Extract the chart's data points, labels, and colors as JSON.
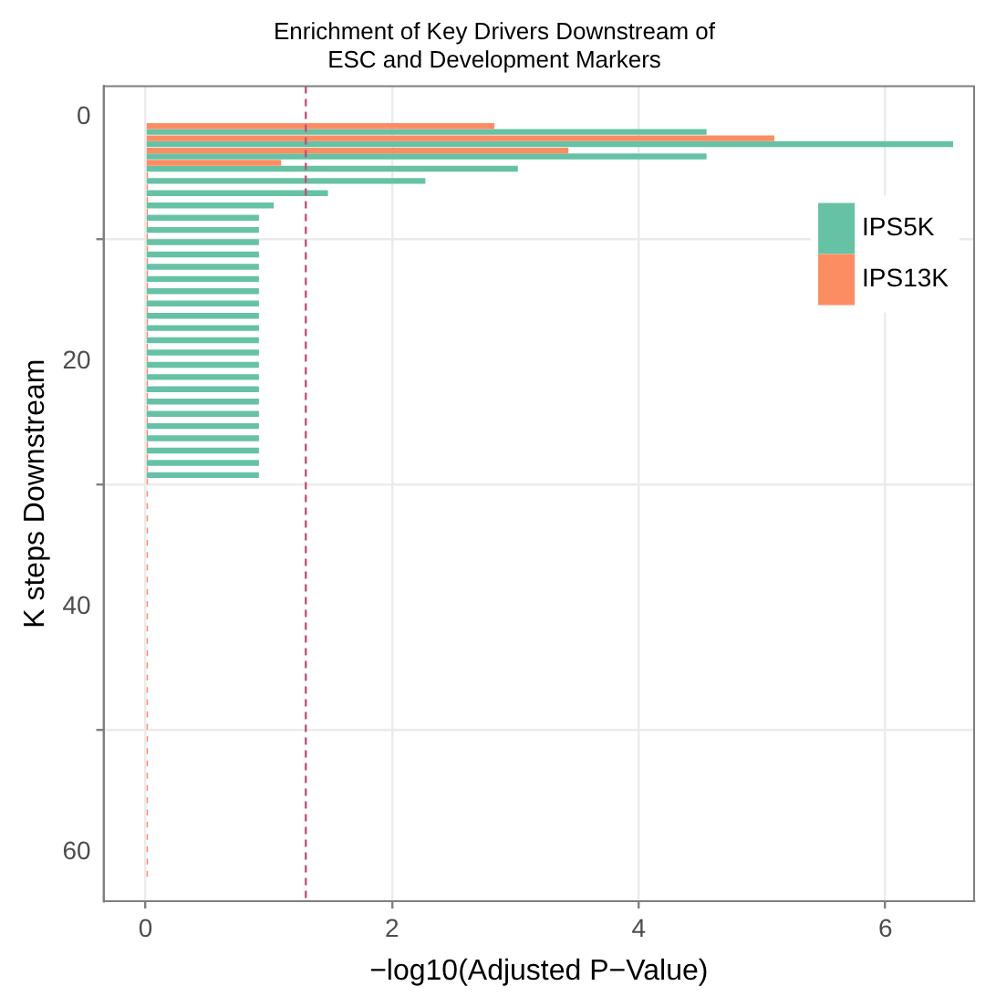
{
  "chart_data": {
    "type": "bar",
    "orientation": "horizontal",
    "title": "Enrichment of Key Drivers Downstream of\nESC and Development Markers",
    "xlabel": "−log10(Adjusted P−Value)",
    "ylabel": "K steps Downstream",
    "x": [
      1,
      2,
      3,
      4,
      5,
      6,
      7,
      8,
      9,
      10,
      11,
      12,
      13,
      14,
      15,
      16,
      17,
      18,
      19,
      20,
      21,
      22,
      23,
      24,
      25,
      26,
      27,
      28,
      29,
      30,
      31,
      32,
      33,
      34,
      35,
      36,
      37,
      38,
      39,
      40,
      41,
      42,
      43,
      44,
      45,
      46,
      47,
      48,
      49,
      50,
      51,
      52,
      53,
      54,
      55,
      56,
      57,
      58,
      59,
      60,
      61,
      62
    ],
    "series": [
      {
        "name": "IPS5K",
        "color": "#66c2a5",
        "values": [
          4.55,
          6.55,
          4.55,
          3.02,
          2.27,
          1.48,
          1.04,
          0.92,
          0.92,
          0.92,
          0.92,
          0.92,
          0.92,
          0.92,
          0.92,
          0.92,
          0.92,
          0.92,
          0.92,
          0.92,
          0.92,
          0.92,
          0.92,
          0.92,
          0.92,
          0.92,
          0.92,
          0.92,
          0.92,
          null,
          null,
          null,
          null,
          null,
          null,
          null,
          null,
          null,
          null,
          null,
          null,
          null,
          null,
          null,
          null,
          null,
          null,
          null,
          null,
          null,
          null,
          null,
          null,
          null,
          null,
          null,
          null,
          null,
          null,
          null,
          null,
          null
        ]
      },
      {
        "name": "IPS13K",
        "color": "#fc8d62",
        "values": [
          2.83,
          5.1,
          3.43,
          1.1,
          0.02,
          0.02,
          0.02,
          0.02,
          0.02,
          0.02,
          0.02,
          0.02,
          0.02,
          0.02,
          0.02,
          0.02,
          0.02,
          0.02,
          0.02,
          0.02,
          0.02,
          0.02,
          0.02,
          0.02,
          0.02,
          0.02,
          0.02,
          0.02,
          0.02,
          0.02,
          0.02,
          0.02,
          0.02,
          0.02,
          0.02,
          0.02,
          0.02,
          0.02,
          0.02,
          0.02,
          0.02,
          0.02,
          0.02,
          0.02,
          0.02,
          0.02,
          0.02,
          0.02,
          0.02,
          0.02,
          0.02,
          0.02,
          0.02,
          0.02,
          0.02,
          0.02,
          0.02,
          0.02,
          0.02,
          0.02,
          0.02,
          0.02
        ]
      }
    ],
    "xlim": [
      -0.34,
      6.72
    ],
    "xticks": [
      0,
      2,
      4,
      6
    ],
    "ylim": [
      64,
      -2.5
    ],
    "yticks": [
      0,
      20,
      40,
      60
    ],
    "ref_lines": [
      {
        "axis": "x",
        "value": 1.3,
        "color": "#c2527a",
        "line_style": "dashed"
      }
    ],
    "grid": true,
    "legend": "top right"
  }
}
